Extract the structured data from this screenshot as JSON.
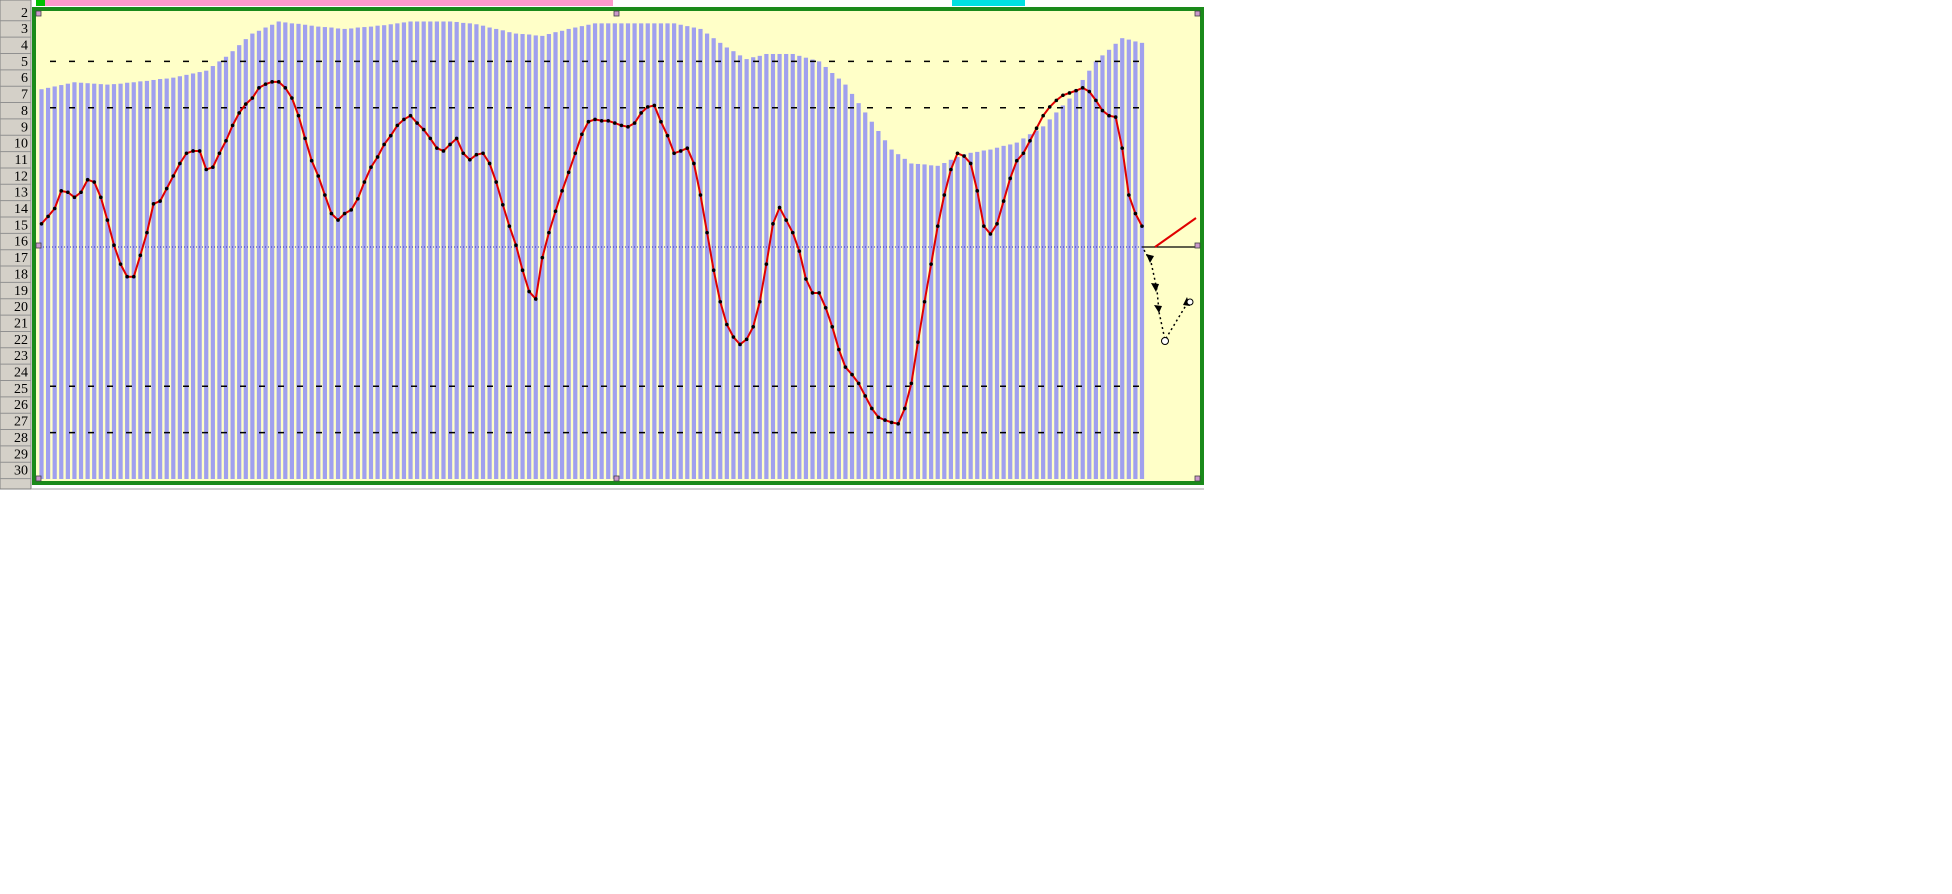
{
  "row_headers": [
    "2",
    "3",
    "4",
    "5",
    "6",
    "7",
    "8",
    "9",
    "10",
    "11",
    "12",
    "13",
    "14",
    "15",
    "16",
    "17",
    "18",
    "19",
    "20",
    "21",
    "22",
    "23",
    "24",
    "25",
    "26",
    "27",
    "28",
    "29",
    "30"
  ],
  "chart_data": {
    "type": "bar",
    "ylim": [
      0,
      100
    ],
    "reference_lines": [
      90,
      80,
      20,
      10
    ],
    "center_line": 50,
    "series": [
      {
        "type": "bar",
        "color": "#a0a0ee",
        "values": [
          84,
          84.3,
          84.6,
          84.9,
          85.2,
          85.5,
          85.4,
          85.3,
          85.2,
          85.1,
          85,
          85.1,
          85.2,
          85.4,
          85.5,
          85.7,
          85.8,
          86,
          86.2,
          86.3,
          86.5,
          86.8,
          87.1,
          87.4,
          87.7,
          88,
          89,
          90,
          91,
          92.2,
          93.5,
          94.8,
          96,
          96.6,
          97.3,
          97.9,
          98.6,
          98.4,
          98.2,
          98.1,
          97.9,
          97.7,
          97.5,
          97.4,
          97.3,
          97.1,
          97,
          97.1,
          97.3,
          97.4,
          97.5,
          97.7,
          97.8,
          98,
          98.2,
          98.4,
          98.6,
          98.6,
          98.6,
          98.6,
          98.6,
          98.6,
          98.6,
          98.5,
          98.3,
          98.2,
          98,
          97.7,
          97.3,
          97,
          96.7,
          96.3,
          96,
          95.9,
          95.8,
          95.6,
          95.5,
          95.9,
          96.3,
          96.6,
          97,
          97.3,
          97.6,
          97.9,
          98.2,
          98.2,
          98.2,
          98.2,
          98.2,
          98.2,
          98.2,
          98.2,
          98.2,
          98.2,
          98.2,
          98.2,
          98.2,
          97.9,
          97.6,
          97.3,
          97,
          96,
          95,
          94,
          93,
          92.2,
          91.3,
          90.5,
          90.9,
          91.2,
          91.6,
          91.6,
          91.6,
          91.6,
          91.6,
          91.2,
          90.8,
          90.4,
          90,
          88.8,
          87.5,
          86.3,
          85,
          83,
          81,
          79,
          77,
          75,
          73,
          71,
          70,
          69,
          68,
          67.9,
          67.8,
          67.6,
          67.5,
          68.1,
          68.8,
          69.4,
          70,
          70.3,
          70.5,
          70.8,
          71,
          71.4,
          71.8,
          72.1,
          72.5,
          73.4,
          74.3,
          75.1,
          76,
          77.5,
          79,
          80.5,
          82,
          84,
          86,
          88,
          90,
          91.3,
          92.5,
          93.8,
          95,
          94.7,
          94.3,
          94
        ]
      },
      {
        "type": "line",
        "color": "#e00000",
        "values": [
          55,
          56.6,
          58.3,
          62.1,
          61.8,
          60.7,
          61.8,
          64.5,
          64,
          60.7,
          55.8,
          50.4,
          46.3,
          43.6,
          43.6,
          48.2,
          53.1,
          59.3,
          59.9,
          62.6,
          65.3,
          68,
          70.2,
          70.7,
          70.7,
          66.7,
          67.2,
          70.2,
          72.9,
          76.2,
          78.9,
          80.8,
          82.1,
          84.3,
          85.1,
          85.6,
          85.6,
          84.3,
          82.1,
          78.3,
          73.4,
          68.6,
          65.3,
          61.2,
          57.2,
          55.8,
          57.2,
          58,
          60.4,
          64,
          67.2,
          69.4,
          72.1,
          74,
          76.2,
          77.5,
          78.3,
          76.7,
          75.3,
          73.4,
          71.3,
          70.7,
          72.1,
          73.4,
          70.2,
          68.8,
          69.9,
          70.2,
          68,
          64,
          59.1,
          54.5,
          50.4,
          45,
          40.4,
          38.8,
          47.7,
          53.1,
          57.7,
          62.1,
          66.1,
          70.2,
          74.3,
          77,
          77.5,
          77.2,
          77.2,
          76.7,
          76.2,
          75.9,
          76.7,
          78.9,
          80.2,
          80.5,
          77,
          74,
          70.2,
          70.7,
          71.3,
          68,
          61.2,
          53.1,
          45,
          38.2,
          33.3,
          30.6,
          29,
          30.1,
          32.8,
          38.2,
          46.3,
          55,
          58.5,
          55.8,
          53.1,
          49.1,
          43.1,
          40.1,
          40.1,
          36.9,
          32.8,
          27.9,
          24.1,
          22.5,
          20.6,
          17.9,
          15.2,
          13.3,
          12.7,
          12.2,
          11.9,
          15.2,
          20.6,
          29.5,
          38.2,
          46.3,
          54.5,
          61.2,
          66.7,
          70.2,
          69.6,
          68,
          62.1,
          54.5,
          52.8,
          55,
          59.9,
          64.8,
          68.6,
          70.2,
          72.9,
          75.6,
          78.3,
          80.2,
          81.6,
          82.7,
          83.2,
          83.7,
          84.3,
          83.5,
          81.6,
          79.4,
          78.3,
          78,
          71.3,
          61.2,
          57.2,
          54.5
        ]
      }
    ]
  }
}
